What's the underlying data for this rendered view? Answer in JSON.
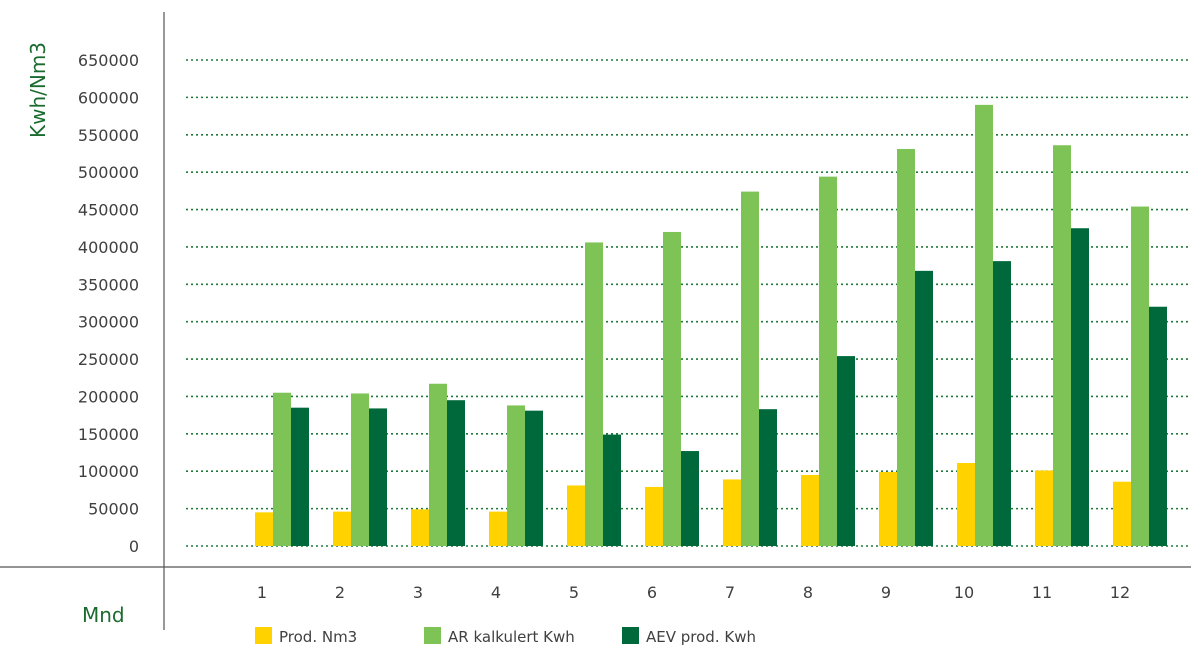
{
  "chart_data": {
    "type": "bar",
    "ylabel": "Kwh/Nm3",
    "xlabel": "Mnd",
    "ylim": [
      0,
      650000
    ],
    "yticks": [
      0,
      50000,
      100000,
      150000,
      200000,
      250000,
      300000,
      350000,
      400000,
      450000,
      500000,
      550000,
      600000,
      650000
    ],
    "ytick_labels": [
      "0",
      "50000",
      "100000",
      "150000",
      "200000",
      "250000",
      "300000",
      "350000",
      "400000",
      "450000",
      "500000",
      "550000",
      "600000",
      "650000"
    ],
    "categories": [
      "1",
      "2",
      "3",
      "4",
      "5",
      "6",
      "7",
      "8",
      "9",
      "10",
      "11",
      "12"
    ],
    "series": [
      {
        "name": "Prod. Nm3",
        "color": "#ffd200",
        "values": [
          45000,
          46000,
          49000,
          46000,
          81000,
          79000,
          89000,
          95000,
          99000,
          111000,
          101000,
          86000
        ]
      },
      {
        "name": "AR kalkulert Kwh",
        "color": "#7dc355",
        "values": [
          205000,
          204000,
          217000,
          188000,
          406000,
          420000,
          474000,
          494000,
          531000,
          590000,
          536000,
          454000
        ]
      },
      {
        "name": "AEV prod. Kwh",
        "color": "#00693c",
        "values": [
          185000,
          184000,
          195000,
          181000,
          149000,
          127000,
          183000,
          254000,
          368000,
          381000,
          425000,
          320000
        ]
      }
    ],
    "grid": true,
    "legend_position": "bottom"
  }
}
